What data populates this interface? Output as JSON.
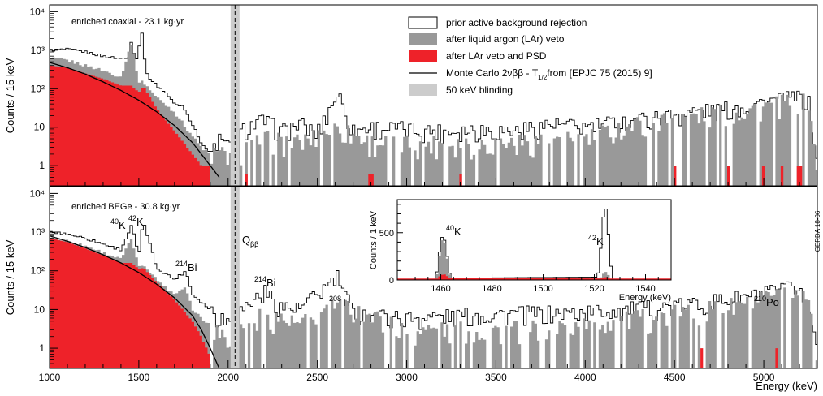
{
  "colors": {
    "prior": "#ffffff",
    "lar": "#999999",
    "psd": "#ee2229",
    "blinding": "#cccccc",
    "mc": "#000000"
  },
  "legend": [
    {
      "key": "prior",
      "label": "prior active background rejection"
    },
    {
      "key": "lar",
      "label": "after liquid argon (LAr) veto"
    },
    {
      "key": "psd",
      "label": "after LAr veto and PSD"
    },
    {
      "key": "mc",
      "label": "Monte Carlo 2νββ  - T",
      "sub": "1/2",
      "tail": " from [EPJC 75 (2015) 9]"
    },
    {
      "key": "blinding",
      "label": "50 keV blinding"
    }
  ],
  "labels": {
    "top_title": "enriched coaxial - 23.1 kg·yr",
    "bottom_title": "enriched BEGe - 30.8 kg·yr",
    "ylabel": "Counts / 15 keV",
    "xlabel": "Energy (keV)",
    "gerda": "GERDA 18-06",
    "qbb_main": "Q",
    "qbb_sub": "ββ",
    "inset_ylabel": "Counts / 1 keV",
    "inset_xlabel": "Energy (keV)"
  },
  "peak_labels": [
    {
      "sup": "40",
      "text": "K",
      "energy": 1461
    },
    {
      "sup": "42",
      "text": "K",
      "energy": 1525
    },
    {
      "sup": "214",
      "text": "Bi",
      "energy": 1764
    },
    {
      "sup": "214",
      "text": "Bi",
      "energy": 2204
    },
    {
      "sup": "208",
      "text": "Tl",
      "energy": 2615
    },
    {
      "sup": "210",
      "text": "Po",
      "energy": 5304
    }
  ],
  "inset_peak_labels": [
    {
      "sup": "40",
      "text": "K",
      "energy": 1461
    },
    {
      "sup": "42",
      "text": "K",
      "energy": 1525
    }
  ],
  "chart_data": [
    {
      "type": "histogram",
      "name": "enriched coaxial - 23.1 kg·yr",
      "xlim": [
        1000,
        5300
      ],
      "ylim": [
        0.3,
        15000
      ],
      "yscale": "log",
      "bin_width_keV": 15,
      "yticks": [
        "1",
        "10",
        "10²",
        "10³",
        "10⁴"
      ],
      "xticks": [],
      "blinding_window": [
        2014,
        2064
      ],
      "qbb": 2039,
      "series": [
        {
          "name": "prior active background rejection",
          "points": [
            [
              1000,
              1000
            ],
            [
              1100,
              1050
            ],
            [
              1200,
              900
            ],
            [
              1300,
              700
            ],
            [
              1400,
              600
            ],
            [
              1450,
              700
            ],
            [
              1460,
              2200
            ],
            [
              1480,
              450
            ],
            [
              1520,
              3000
            ],
            [
              1540,
              250
            ],
            [
              1600,
              120
            ],
            [
              1650,
              80
            ],
            [
              1700,
              40
            ],
            [
              1750,
              35
            ],
            [
              1800,
              12
            ],
            [
              1850,
              4
            ],
            [
              1900,
              2
            ],
            [
              1950,
              5
            ],
            [
              2000,
              3
            ],
            [
              2100,
              10
            ],
            [
              2200,
              15
            ],
            [
              2300,
              8
            ],
            [
              2400,
              12
            ],
            [
              2500,
              7
            ],
            [
              2615,
              80
            ],
            [
              2700,
              8
            ],
            [
              2800,
              10
            ],
            [
              3000,
              9
            ],
            [
              3200,
              8
            ],
            [
              3400,
              9
            ],
            [
              3600,
              8
            ],
            [
              3800,
              12
            ],
            [
              4000,
              10
            ],
            [
              4200,
              14
            ],
            [
              4400,
              18
            ],
            [
              4600,
              25
            ],
            [
              4800,
              30
            ],
            [
              5000,
              45
            ],
            [
              5200,
              60
            ],
            [
              5250,
              50
            ],
            [
              5300,
              1
            ]
          ]
        },
        {
          "name": "after liquid argon (LAr) veto",
          "points": [
            [
              1000,
              600
            ],
            [
              1100,
              550
            ],
            [
              1200,
              400
            ],
            [
              1300,
              300
            ],
            [
              1400,
              200
            ],
            [
              1460,
              1600
            ],
            [
              1500,
              150
            ],
            [
              1525,
              150
            ],
            [
              1600,
              60
            ],
            [
              1700,
              25
            ],
            [
              1800,
              6
            ],
            [
              1850,
              3
            ],
            [
              1900,
              2
            ],
            [
              2000,
              2
            ],
            [
              2200,
              5
            ],
            [
              2400,
              4
            ],
            [
              2615,
              10
            ],
            [
              2800,
              4
            ],
            [
              3000,
              4
            ],
            [
              3200,
              4
            ],
            [
              3400,
              4
            ],
            [
              3600,
              4
            ],
            [
              3800,
              5
            ],
            [
              4000,
              5
            ],
            [
              4200,
              10
            ],
            [
              4400,
              15
            ],
            [
              4600,
              20
            ],
            [
              4800,
              25
            ],
            [
              5000,
              35
            ],
            [
              5200,
              50
            ],
            [
              5250,
              40
            ],
            [
              5300,
              1
            ]
          ]
        },
        {
          "name": "after LAr veto and PSD",
          "points": [
            [
              1000,
              400
            ],
            [
              1100,
              350
            ],
            [
              1200,
              250
            ],
            [
              1300,
              180
            ],
            [
              1400,
              120
            ],
            [
              1460,
              120
            ],
            [
              1500,
              80
            ],
            [
              1525,
              120
            ],
            [
              1600,
              30
            ],
            [
              1700,
              8
            ],
            [
              1800,
              2
            ],
            [
              1850,
              1
            ],
            [
              2100,
              0.6
            ],
            [
              2800,
              0.6
            ],
            [
              3300,
              0.6
            ],
            [
              4500,
              1
            ],
            [
              4800,
              1
            ],
            [
              5000,
              1
            ],
            [
              5100,
              1
            ],
            [
              5200,
              1
            ]
          ]
        },
        {
          "name": "Monte Carlo 2νββ",
          "points": [
            [
              1000,
              480
            ],
            [
              1100,
              350
            ],
            [
              1200,
              240
            ],
            [
              1300,
              150
            ],
            [
              1400,
              90
            ],
            [
              1500,
              50
            ],
            [
              1600,
              25
            ],
            [
              1700,
              11
            ],
            [
              1800,
              4
            ],
            [
              1850,
              2
            ],
            [
              1900,
              1
            ],
            [
              1950,
              0.5
            ]
          ]
        }
      ]
    },
    {
      "type": "histogram",
      "name": "enriched BEGe - 30.8 kg·yr",
      "xlim": [
        1000,
        5300
      ],
      "ylim": [
        0.3,
        15000
      ],
      "yscale": "log",
      "bin_width_keV": 15,
      "yticks": [
        "1",
        "10",
        "10²",
        "10³",
        "10⁴"
      ],
      "xticks": [
        "1000",
        "1500",
        "2000",
        "2500",
        "3000",
        "3500",
        "4000",
        "4500",
        "5000"
      ],
      "xlabel": "Energy (keV)",
      "blinding_window": [
        2014,
        2064
      ],
      "qbb": 2039,
      "series": [
        {
          "name": "prior active background rejection",
          "points": [
            [
              1000,
              1000
            ],
            [
              1100,
              900
            ],
            [
              1200,
              700
            ],
            [
              1300,
              500
            ],
            [
              1400,
              350
            ],
            [
              1460,
              1500
            ],
            [
              1500,
              250
            ],
            [
              1525,
              2000
            ],
            [
              1600,
              120
            ],
            [
              1700,
              60
            ],
            [
              1764,
              100
            ],
            [
              1800,
              25
            ],
            [
              1900,
              10
            ],
            [
              2000,
              5
            ],
            [
              2204,
              30
            ],
            [
              2300,
              12
            ],
            [
              2400,
              10
            ],
            [
              2615,
              70
            ],
            [
              2700,
              8
            ],
            [
              3000,
              6
            ],
            [
              3300,
              7
            ],
            [
              3600,
              8
            ],
            [
              3900,
              8
            ],
            [
              4200,
              10
            ],
            [
              4500,
              12
            ],
            [
              4800,
              18
            ],
            [
              5000,
              25
            ],
            [
              5200,
              40
            ],
            [
              5280,
              3
            ],
            [
              5300,
              1
            ]
          ]
        },
        {
          "name": "after liquid argon (LAr) veto",
          "points": [
            [
              1000,
              700
            ],
            [
              1100,
              600
            ],
            [
              1200,
              450
            ],
            [
              1300,
              300
            ],
            [
              1400,
              200
            ],
            [
              1460,
              700
            ],
            [
              1500,
              120
            ],
            [
              1525,
              150
            ],
            [
              1600,
              60
            ],
            [
              1700,
              25
            ],
            [
              1764,
              40
            ],
            [
              1800,
              10
            ],
            [
              1900,
              4
            ],
            [
              2000,
              2
            ],
            [
              2204,
              8
            ],
            [
              2400,
              4
            ],
            [
              2615,
              15
            ],
            [
              3000,
              3
            ],
            [
              3500,
              3
            ],
            [
              4000,
              4
            ],
            [
              4500,
              8
            ],
            [
              4800,
              12
            ],
            [
              5000,
              18
            ],
            [
              5200,
              30
            ],
            [
              5250,
              20
            ],
            [
              5300,
              1
            ]
          ]
        },
        {
          "name": "after LAr veto and PSD",
          "points": [
            [
              1000,
              700
            ],
            [
              1100,
              550
            ],
            [
              1200,
              380
            ],
            [
              1300,
              250
            ],
            [
              1400,
              160
            ],
            [
              1460,
              160
            ],
            [
              1500,
              110
            ],
            [
              1525,
              120
            ],
            [
              1600,
              50
            ],
            [
              1700,
              18
            ],
            [
              1800,
              5
            ],
            [
              1850,
              2
            ],
            [
              1900,
              0.6
            ],
            [
              4650,
              1
            ],
            [
              5070,
              1
            ]
          ]
        },
        {
          "name": "Monte Carlo 2νββ",
          "points": [
            [
              1000,
              800
            ],
            [
              1100,
              580
            ],
            [
              1200,
              400
            ],
            [
              1300,
              260
            ],
            [
              1400,
              160
            ],
            [
              1500,
              90
            ],
            [
              1600,
              45
            ],
            [
              1700,
              20
            ],
            [
              1800,
              7
            ],
            [
              1850,
              3
            ],
            [
              1900,
              1
            ],
            [
              1950,
              0.3
            ]
          ]
        }
      ]
    },
    {
      "type": "histogram",
      "name": "inset",
      "xlim": [
        1443,
        1550
      ],
      "ylim": [
        0,
        850
      ],
      "yscale": "linear",
      "bin_width_keV": 1,
      "xticks": [
        "1460",
        "1480",
        "1500",
        "1520",
        "1540"
      ],
      "yticks": [
        "0",
        "500"
      ],
      "xlabel": "Energy (keV)",
      "ylabel": "Counts / 1 keV",
      "series": [
        {
          "name": "prior active background rejection",
          "points": [
            [
              1458,
              20
            ],
            [
              1459,
              150
            ],
            [
              1460,
              440
            ],
            [
              1461,
              460
            ],
            [
              1462,
              380
            ],
            [
              1463,
              120
            ],
            [
              1464,
              20
            ],
            [
              1521,
              30
            ],
            [
              1522,
              120
            ],
            [
              1523,
              550
            ],
            [
              1524,
              780
            ],
            [
              1525,
              720
            ],
            [
              1526,
              250
            ],
            [
              1527,
              40
            ]
          ]
        },
        {
          "name": "after liquid argon (LAr) veto",
          "points": [
            [
              1458,
              10
            ],
            [
              1459,
              110
            ],
            [
              1460,
              400
            ],
            [
              1461,
              440
            ],
            [
              1462,
              350
            ],
            [
              1463,
              100
            ],
            [
              1464,
              15
            ],
            [
              1522,
              15
            ],
            [
              1523,
              40
            ],
            [
              1524,
              90
            ],
            [
              1525,
              80
            ],
            [
              1526,
              25
            ]
          ]
        },
        {
          "name": "after LAr veto and PSD",
          "points": [
            [
              1459,
              25
            ],
            [
              1460,
              50
            ],
            [
              1461,
              60
            ],
            [
              1462,
              55
            ],
            [
              1463,
              25
            ],
            [
              1523,
              15
            ],
            [
              1524,
              30
            ],
            [
              1525,
              28
            ],
            [
              1526,
              12
            ]
          ]
        }
      ]
    }
  ]
}
